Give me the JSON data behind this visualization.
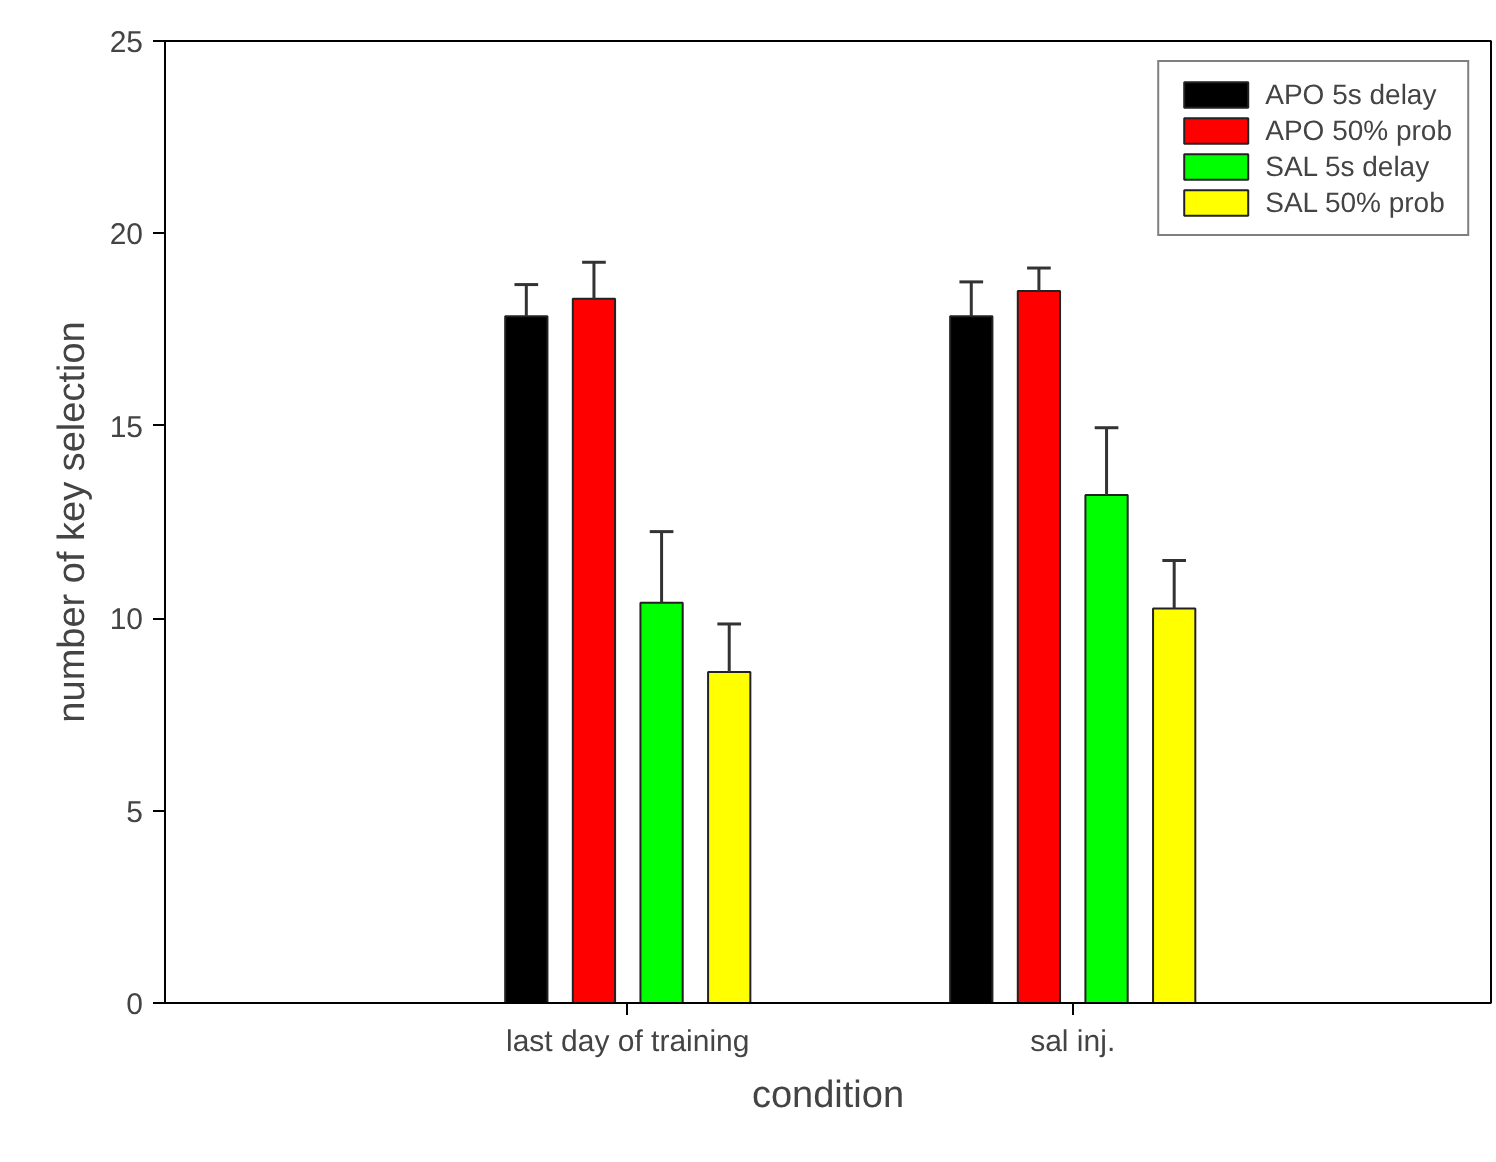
{
  "chart_data": {
    "type": "bar",
    "xlabel": "condition",
    "ylabel": "number of key selection",
    "categories": [
      "last day of training",
      "sal inj."
    ],
    "series": [
      {
        "name": "APO 5s delay",
        "color": "#000000",
        "values": [
          17.85,
          17.85
        ],
        "errors": [
          [
            17.85,
            18.67
          ],
          [
            17.85,
            18.74
          ]
        ]
      },
      {
        "name": "APO 50% prob",
        "color": "#ff0000",
        "values": [
          18.3,
          18.5
        ],
        "errors": [
          [
            18.3,
            19.25
          ],
          [
            18.5,
            19.1
          ]
        ]
      },
      {
        "name": "SAL 5s delay",
        "color": "#00ff00",
        "values": [
          10.4,
          13.2
        ],
        "errors": [
          [
            10.4,
            12.25
          ],
          [
            13.2,
            14.95
          ]
        ]
      },
      {
        "name": "SAL 50% prob",
        "color": "#ffff00",
        "values": [
          8.6,
          10.25
        ],
        "errors": [
          [
            8.6,
            9.85
          ],
          [
            10.25,
            11.5
          ]
        ]
      }
    ],
    "ylim": [
      0,
      25
    ],
    "yticks": [
      0,
      5,
      10,
      15,
      20,
      25
    ],
    "grid": false,
    "legend": "top right"
  }
}
